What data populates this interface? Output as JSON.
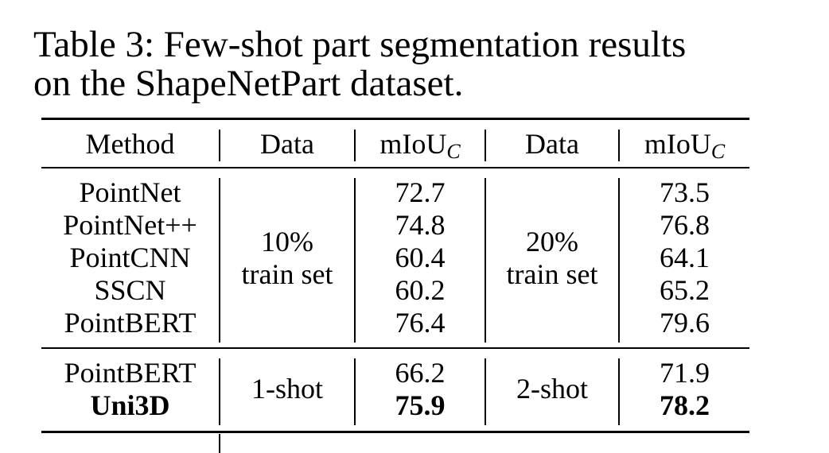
{
  "caption": {
    "line1": "Table 3: Few-shot part segmentation results",
    "line2": "on the ShapeNetPart dataset."
  },
  "header": {
    "method": "Method",
    "data1": "Data",
    "metric1_main": "mIoU",
    "metric1_sub": "C",
    "data2": "Data",
    "metric2_main": "mIoU",
    "metric2_sub": "C"
  },
  "group1": {
    "methods": [
      "PointNet",
      "PointNet++",
      "PointCNN",
      "SSCN",
      "PointBERT"
    ],
    "data1_line1": "10%",
    "data1_line2": "train set",
    "scores1": [
      "72.7",
      "74.8",
      "60.4",
      "60.2",
      "76.4"
    ],
    "data2_line1": "20%",
    "data2_line2": "train set",
    "scores2": [
      "73.5",
      "76.8",
      "64.1",
      "65.2",
      "79.6"
    ]
  },
  "group2": {
    "methods": [
      "PointBERT",
      "Uni3D"
    ],
    "data1": "1-shot",
    "scores1": [
      "66.2",
      "75.9"
    ],
    "data2": "2-shot",
    "scores2": [
      "71.9",
      "78.2"
    ]
  }
}
